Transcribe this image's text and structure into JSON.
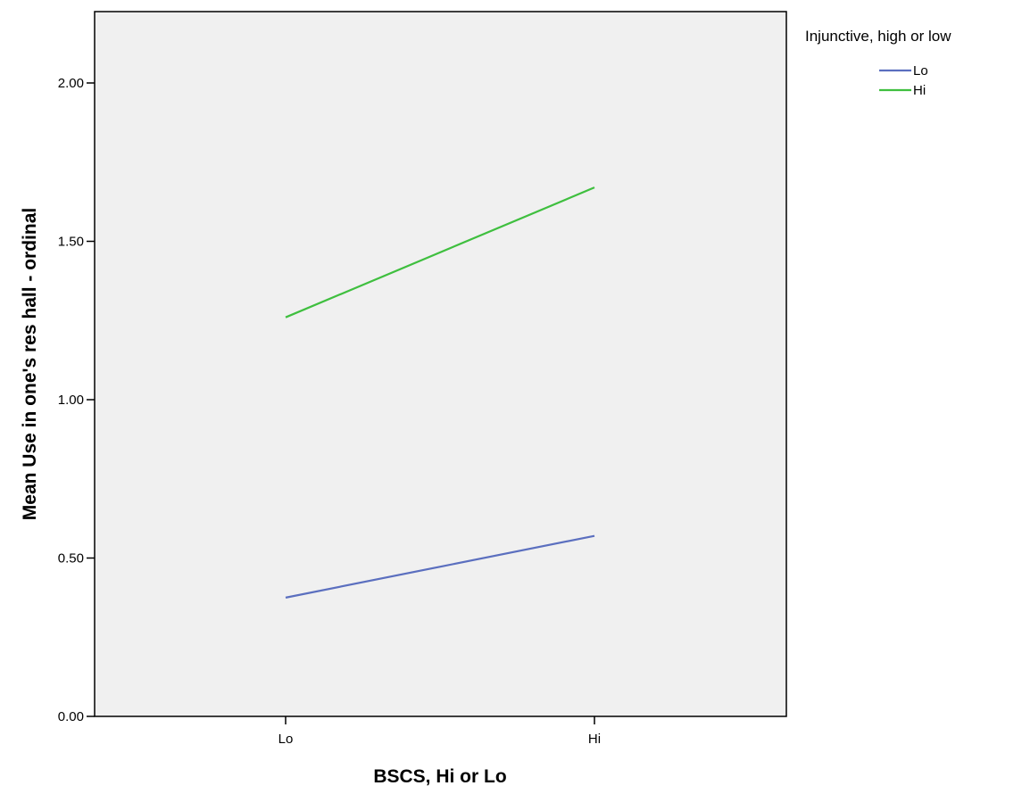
{
  "chart_data": {
    "type": "line",
    "title": "",
    "xlabel": "BSCS, Hi or Lo",
    "ylabel": "Mean Use in one's res hall - ordinal",
    "categories": [
      "Lo",
      "Hi"
    ],
    "ylim": [
      0,
      2.2
    ],
    "yticks": [
      0,
      0.5,
      1,
      1.5,
      2
    ],
    "ytick_labels": [
      "0.00",
      "0.50",
      "1.00",
      "1.50",
      "2.00"
    ],
    "grid": false,
    "legend": {
      "title": "Injunctive, high or low",
      "position": "top-right, outside plot"
    },
    "series": [
      {
        "name": "Lo",
        "color": "#5b6fbf",
        "values": [
          0.375,
          0.57
        ]
      },
      {
        "name": "Hi",
        "color": "#3fbf3f",
        "values": [
          1.26,
          1.67
        ]
      }
    ],
    "plot_background": "#f0f0f0"
  }
}
